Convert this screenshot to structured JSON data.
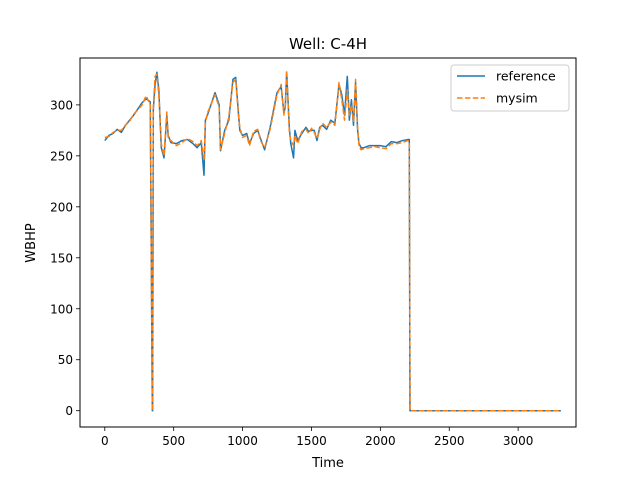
{
  "chart_data": {
    "type": "line",
    "title": "Well: C-4H",
    "xlabel": "Time",
    "ylabel": "WBHP",
    "xlim": [
      -180,
      3420
    ],
    "ylim": [
      -16,
      346
    ],
    "xticks": [
      0,
      500,
      1000,
      1500,
      2000,
      2500,
      3000
    ],
    "yticks": [
      0,
      50,
      100,
      150,
      200,
      250,
      300
    ],
    "grid": false,
    "legend_position": "top-right",
    "series": [
      {
        "name": "reference",
        "color": "#1f77b4",
        "style": "solid",
        "x": [
          0,
          30,
          60,
          90,
          120,
          150,
          180,
          210,
          240,
          270,
          300,
          330,
          345,
          347,
          352,
          365,
          378,
          392,
          410,
          430,
          450,
          460,
          480,
          520,
          560,
          600,
          640,
          670,
          700,
          720,
          730,
          745,
          800,
          830,
          840,
          870,
          900,
          930,
          950,
          970,
          980,
          1000,
          1030,
          1050,
          1080,
          1110,
          1130,
          1160,
          1200,
          1250,
          1280,
          1300,
          1310,
          1320,
          1340,
          1350,
          1370,
          1380,
          1400,
          1430,
          1460,
          1480,
          1500,
          1520,
          1540,
          1560,
          1580,
          1610,
          1640,
          1670,
          1700,
          1720,
          1740,
          1760,
          1775,
          1790,
          1805,
          1820,
          1835,
          1845,
          1860,
          1880,
          1920,
          1960,
          2000,
          2040,
          2080,
          2120,
          2160,
          2200,
          2210,
          2215,
          2220,
          2300,
          2500,
          2700,
          2900,
          3100,
          3310
        ],
        "y": [
          265,
          270,
          272,
          276,
          273,
          280,
          285,
          290,
          296,
          302,
          306,
          303,
          0,
          0,
          295,
          320,
          332,
          315,
          258,
          248,
          290,
          270,
          263,
          262,
          265,
          266,
          262,
          258,
          263,
          231,
          285,
          290,
          312,
          300,
          255,
          275,
          285,
          325,
          327,
          292,
          275,
          270,
          272,
          262,
          272,
          275,
          267,
          256,
          278,
          312,
          318,
          292,
          298,
          332,
          276,
          262,
          248,
          275,
          265,
          272,
          278,
          274,
          275,
          275,
          265,
          278,
          280,
          276,
          285,
          282,
          320,
          310,
          290,
          328,
          285,
          305,
          280,
          322,
          275,
          262,
          258,
          258,
          260,
          260,
          260,
          259,
          264,
          263,
          265,
          266,
          266,
          0,
          0,
          0,
          0,
          0,
          0,
          0,
          0
        ]
      },
      {
        "name": "mysim",
        "color": "#ff7f0e",
        "style": "dashed",
        "x": [
          0,
          30,
          60,
          90,
          120,
          150,
          180,
          210,
          240,
          270,
          300,
          330,
          345,
          347,
          352,
          365,
          378,
          392,
          410,
          430,
          450,
          460,
          480,
          520,
          560,
          600,
          640,
          670,
          700,
          720,
          730,
          745,
          800,
          830,
          840,
          870,
          900,
          930,
          950,
          970,
          980,
          1000,
          1030,
          1050,
          1080,
          1110,
          1130,
          1160,
          1200,
          1250,
          1280,
          1300,
          1310,
          1320,
          1340,
          1350,
          1370,
          1380,
          1400,
          1430,
          1460,
          1480,
          1500,
          1520,
          1540,
          1560,
          1580,
          1610,
          1640,
          1670,
          1700,
          1720,
          1740,
          1760,
          1775,
          1790,
          1805,
          1820,
          1835,
          1845,
          1860,
          1880,
          1920,
          1960,
          2000,
          2040,
          2080,
          2120,
          2160,
          2200,
          2210,
          2215,
          2220,
          2300,
          2500,
          2700,
          2900,
          3100,
          3310
        ],
        "y": [
          268,
          269,
          273,
          275,
          275,
          280,
          284,
          291,
          295,
          300,
          309,
          300,
          0,
          0,
          298,
          328,
          330,
          310,
          262,
          250,
          293,
          268,
          265,
          260,
          263,
          267,
          264,
          260,
          265,
          245,
          282,
          292,
          310,
          298,
          256,
          272,
          288,
          322,
          325,
          290,
          278,
          268,
          270,
          260,
          274,
          276,
          265,
          258,
          276,
          310,
          320,
          290,
          300,
          334,
          272,
          265,
          260,
          270,
          262,
          274,
          276,
          272,
          277,
          273,
          267,
          276,
          282,
          278,
          283,
          280,
          322,
          305,
          285,
          315,
          290,
          300,
          284,
          325,
          278,
          260,
          256,
          257,
          258,
          259,
          258,
          257,
          262,
          262,
          263,
          265,
          264,
          0,
          0,
          0,
          0,
          0,
          0,
          0,
          0
        ]
      }
    ]
  }
}
